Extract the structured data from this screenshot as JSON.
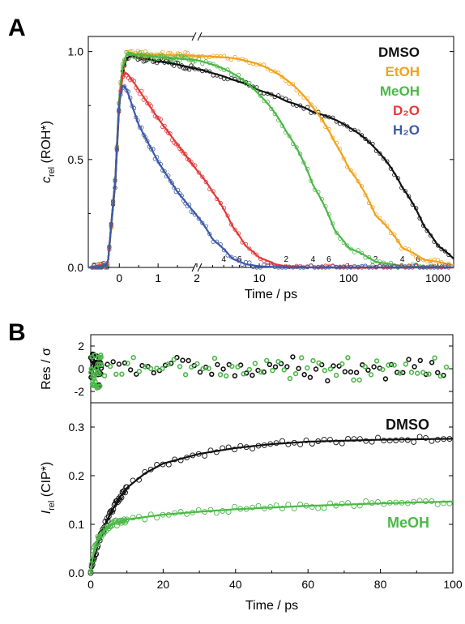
{
  "panel_a": {
    "letter": "A"
  },
  "panel_b": {
    "letter": "B"
  },
  "chart_data": [
    {
      "id": "panel-a",
      "type": "scatter",
      "title": "",
      "xlabel": "Time / ps",
      "ylabel": {
        "var": "c",
        "sub": "rel",
        "rest": " (ROH*)"
      },
      "axis_break": "2 ps (linear scale left of break, logarithmic scale right of break)",
      "linear_segment": {
        "xlim": [
          -0.8,
          2
        ],
        "ticks": [
          "0",
          "1",
          "2"
        ]
      },
      "log_segment": {
        "xlim": [
          2,
          1500
        ],
        "major_ticks": [
          "10",
          "100",
          "1000"
        ],
        "minor_tick_labels": [
          "4",
          "6",
          "2",
          "4",
          "6",
          "2",
          "4",
          "6"
        ]
      },
      "ylim": [
        0,
        1.07
      ],
      "yticks": [
        "0.0",
        "0.5",
        "1.0"
      ],
      "legend_position": "top-right",
      "series": [
        {
          "name": "DMSO",
          "color": "#111111",
          "points": [
            [
              -0.6,
              0
            ],
            [
              -0.3,
              0.01
            ],
            [
              -0.1,
              0.4
            ],
            [
              0,
              0.76
            ],
            [
              0.1,
              0.92
            ],
            [
              0.2,
              0.97
            ],
            [
              0.3,
              0.98
            ],
            [
              0.6,
              0.97
            ],
            [
              1,
              0.955
            ],
            [
              1.5,
              0.94
            ],
            [
              2,
              0.92
            ],
            [
              3,
              0.9
            ],
            [
              5,
              0.87
            ],
            [
              10,
              0.82
            ],
            [
              20,
              0.77
            ],
            [
              40,
              0.72
            ],
            [
              100,
              0.65
            ],
            [
              200,
              0.55
            ],
            [
              400,
              0.37
            ],
            [
              700,
              0.19
            ],
            [
              1000,
              0.1
            ],
            [
              1500,
              0.04
            ]
          ]
        },
        {
          "name": "EtOH",
          "color": "#f2a31b",
          "points": [
            [
              -0.6,
              0
            ],
            [
              -0.3,
              0.01
            ],
            [
              -0.1,
              0.42
            ],
            [
              0,
              0.8
            ],
            [
              0.1,
              0.95
            ],
            [
              0.2,
              0.99
            ],
            [
              0.5,
              0.99
            ],
            [
              1,
              0.985
            ],
            [
              2,
              0.98
            ],
            [
              5,
              0.97
            ],
            [
              10,
              0.94
            ],
            [
              20,
              0.87
            ],
            [
              40,
              0.74
            ],
            [
              70,
              0.58
            ],
            [
              100,
              0.46
            ],
            [
              200,
              0.24
            ],
            [
              400,
              0.09
            ],
            [
              700,
              0.035
            ],
            [
              1500,
              0.01
            ]
          ]
        },
        {
          "name": "MeOH",
          "color": "#4cb848",
          "points": [
            [
              -0.6,
              0
            ],
            [
              -0.3,
              0.01
            ],
            [
              -0.1,
              0.42
            ],
            [
              0,
              0.8
            ],
            [
              0.1,
              0.95
            ],
            [
              0.2,
              0.99
            ],
            [
              0.5,
              0.985
            ],
            [
              1,
              0.975
            ],
            [
              2,
              0.96
            ],
            [
              5,
              0.9
            ],
            [
              10,
              0.8
            ],
            [
              20,
              0.63
            ],
            [
              40,
              0.38
            ],
            [
              70,
              0.17
            ],
            [
              100,
              0.09
            ],
            [
              200,
              0.025
            ],
            [
              400,
              0.005
            ],
            [
              1500,
              0
            ]
          ]
        },
        {
          "name": "D₂O",
          "color": "#e43a3a",
          "points": [
            [
              -0.6,
              0
            ],
            [
              -0.3,
              0.01
            ],
            [
              -0.1,
              0.42
            ],
            [
              0,
              0.78
            ],
            [
              0.1,
              0.9
            ],
            [
              0.2,
              0.9
            ],
            [
              0.4,
              0.85
            ],
            [
              0.7,
              0.77
            ],
            [
              1,
              0.69
            ],
            [
              1.5,
              0.57
            ],
            [
              2,
              0.45
            ],
            [
              3,
              0.35
            ],
            [
              5,
              0.19
            ],
            [
              7,
              0.1
            ],
            [
              10,
              0.045
            ],
            [
              15,
              0.015
            ],
            [
              20,
              0.005
            ],
            [
              40,
              0
            ],
            [
              1500,
              0
            ]
          ]
        },
        {
          "name": "H₂O",
          "color": "#3d5aa8",
          "points": [
            [
              -0.6,
              0
            ],
            [
              -0.3,
              0.01
            ],
            [
              -0.1,
              0.42
            ],
            [
              0,
              0.78
            ],
            [
              0.1,
              0.85
            ],
            [
              0.2,
              0.82
            ],
            [
              0.5,
              0.66
            ],
            [
              1,
              0.49
            ],
            [
              1.5,
              0.35
            ],
            [
              2,
              0.24
            ],
            [
              3,
              0.13
            ],
            [
              5,
              0.04
            ],
            [
              7,
              0.015
            ],
            [
              10,
              0.005
            ],
            [
              20,
              0
            ],
            [
              1500,
              0
            ]
          ]
        }
      ]
    },
    {
      "id": "panel-b-residuals",
      "type": "scatter",
      "xlabel": "",
      "ylabel": "Res / σ",
      "xlim": [
        0,
        100
      ],
      "ylim": [
        -3,
        3
      ],
      "yticks": [
        "-2",
        "0",
        "2"
      ],
      "series": [
        {
          "name": "DMSO",
          "color": "#111111"
        },
        {
          "name": "MeOH",
          "color": "#4cb848"
        }
      ]
    },
    {
      "id": "panel-b",
      "type": "scatter",
      "xlabel": "Time / ps",
      "ylabel": {
        "var": "I",
        "sub": "rel",
        "rest": " (CIP*)"
      },
      "xlim": [
        0,
        100
      ],
      "ylim": [
        0,
        0.35
      ],
      "xticks": [
        "0",
        "20",
        "40",
        "60",
        "80",
        "100"
      ],
      "yticks": [
        "0.0",
        "0.1",
        "0.2",
        "0.3"
      ],
      "series": [
        {
          "name": "DMSO",
          "color": "#111111",
          "points": [
            [
              0,
              0
            ],
            [
              1,
              0.03
            ],
            [
              2,
              0.06
            ],
            [
              4,
              0.1
            ],
            [
              6,
              0.13
            ],
            [
              8,
              0.155
            ],
            [
              10,
              0.175
            ],
            [
              15,
              0.205
            ],
            [
              20,
              0.225
            ],
            [
              30,
              0.245
            ],
            [
              40,
              0.257
            ],
            [
              50,
              0.265
            ],
            [
              60,
              0.27
            ],
            [
              80,
              0.274
            ],
            [
              100,
              0.276
            ]
          ]
        },
        {
          "name": "MeOH",
          "color": "#4cb848",
          "points": [
            [
              0,
              0
            ],
            [
              0.5,
              0.03
            ],
            [
              1,
              0.05
            ],
            [
              2,
              0.07
            ],
            [
              4,
              0.09
            ],
            [
              6,
              0.1
            ],
            [
              10,
              0.11
            ],
            [
              20,
              0.12
            ],
            [
              30,
              0.126
            ],
            [
              40,
              0.131
            ],
            [
              60,
              0.138
            ],
            [
              80,
              0.143
            ],
            [
              100,
              0.147
            ]
          ]
        }
      ]
    }
  ]
}
